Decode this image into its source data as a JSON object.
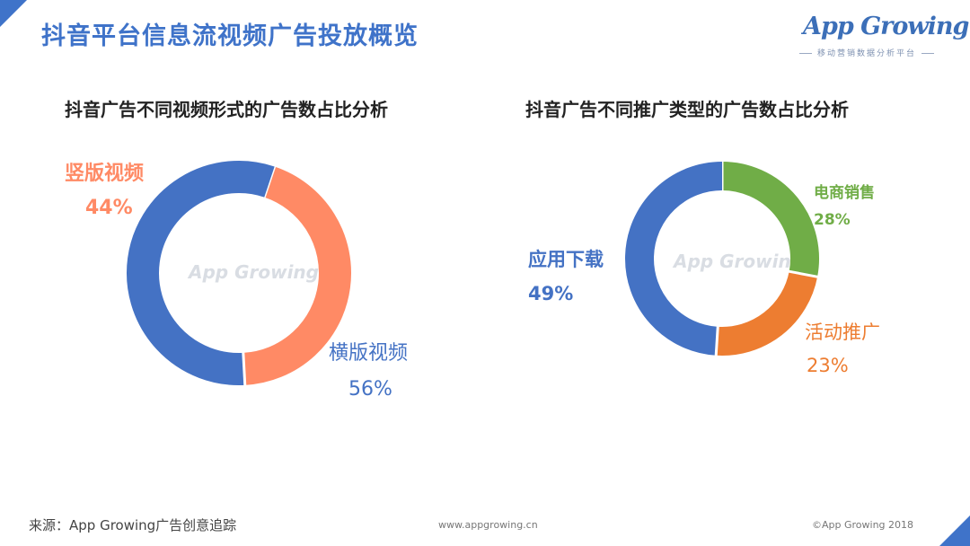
{
  "page": {
    "title": "抖音平台信息流视频广告投放概览",
    "logo_text": "App Growing",
    "logo_tagline": "移动营销数据分析平台",
    "watermark": "App Growing",
    "footer_source": "来源：App Growing广告创意追踪",
    "footer_url": "www.appgrowing.cn",
    "footer_copyright": "©App Growing 2018"
  },
  "colors": {
    "accent": "#3f73c9",
    "blue_series": "#4472c4",
    "orange_series": "#ed7d31",
    "salmon_series": "#ff8a65",
    "green_series": "#70ad47"
  },
  "chart_data": [
    {
      "type": "pie",
      "variant": "donut",
      "title": "抖音广告不同视频形式的广告数占比分析",
      "slices": [
        {
          "label": "竖版视频",
          "value": 44,
          "display": "44%",
          "color": "#ff8a65"
        },
        {
          "label": "横版视频",
          "value": 56,
          "display": "56%",
          "color": "#4472c4"
        }
      ]
    },
    {
      "type": "pie",
      "variant": "donut",
      "title": "抖音广告不同推广类型的广告数占比分析",
      "slices": [
        {
          "label": "电商销售",
          "value": 28,
          "display": "28%",
          "color": "#70ad47"
        },
        {
          "label": "活动推广",
          "value": 23,
          "display": "23%",
          "color": "#ed7d31"
        },
        {
          "label": "应用下载",
          "value": 49,
          "display": "49%",
          "color": "#4472c4"
        }
      ]
    }
  ]
}
